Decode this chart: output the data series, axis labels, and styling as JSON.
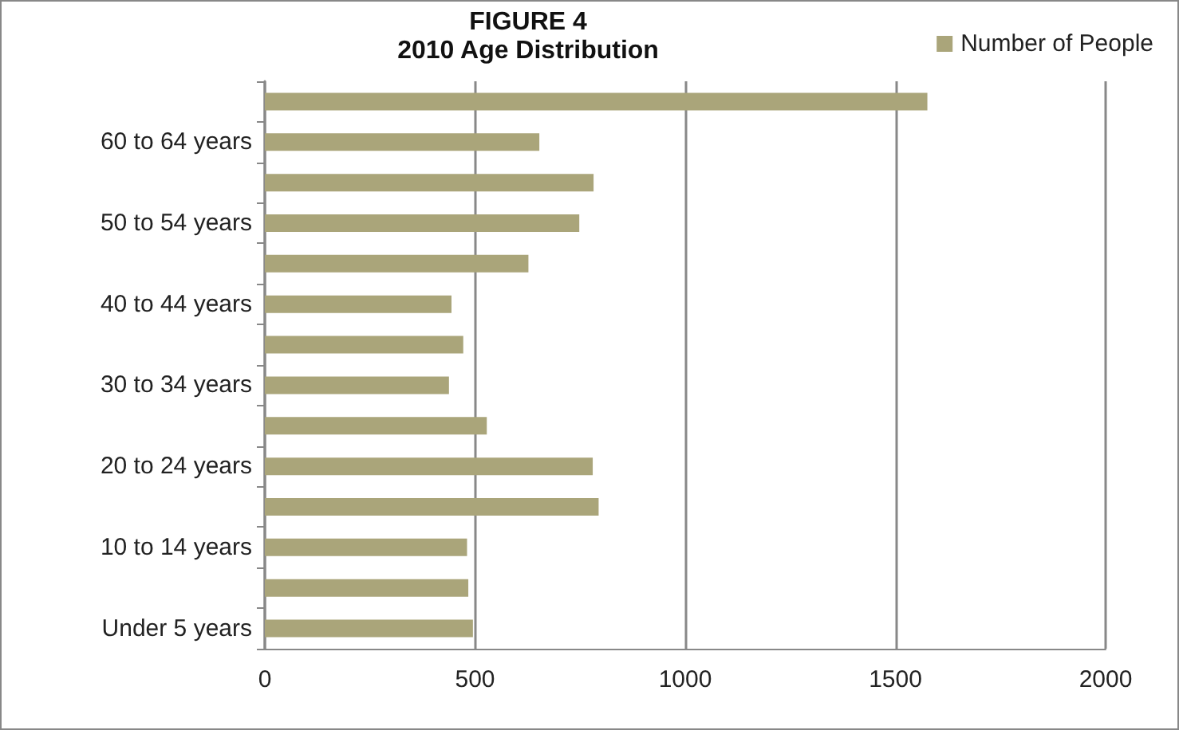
{
  "chart_data": {
    "type": "bar",
    "orientation": "horizontal",
    "title": "FIGURE 4",
    "subtitle": "2010 Age Distribution",
    "categories": [
      null,
      "60 to 64 years",
      null,
      "50 to 54 years",
      null,
      "40 to 44 years",
      null,
      "30 to 34 years",
      null,
      "20 to 24 years",
      null,
      "10 to 14 years",
      null,
      "Under 5 years"
    ],
    "series": [
      {
        "name": "Number of People",
        "color": "#aaa57a",
        "values": [
          1576,
          653,
          782,
          748,
          627,
          444,
          472,
          438,
          528,
          780,
          794,
          481,
          484,
          495
        ]
      }
    ],
    "xlim": [
      0,
      2000
    ],
    "xticks": [
      0,
      500,
      1000,
      1500,
      2000
    ],
    "grid": "x",
    "legend": "top right"
  }
}
